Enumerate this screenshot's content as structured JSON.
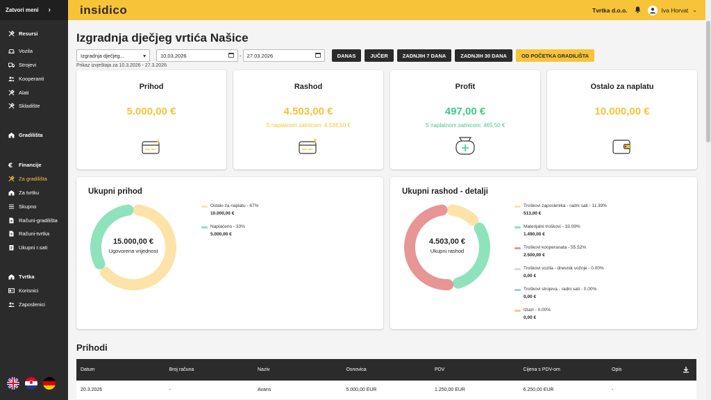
{
  "sidebar": {
    "toggle_label": "Zatvori meni",
    "groups": [
      {
        "title": "Resursi",
        "icon": "tools-icon",
        "items": [
          {
            "label": "Vozila",
            "icon": "car-icon"
          },
          {
            "label": "Strojevi",
            "icon": "truck-icon"
          },
          {
            "label": "Kooperanti",
            "icon": "users-icon"
          },
          {
            "label": "Alati",
            "icon": "tools-icon"
          },
          {
            "label": "Skladište",
            "icon": "tools-icon"
          }
        ]
      },
      {
        "title": "Gradilišta",
        "icon": "building-icon",
        "items": []
      },
      {
        "title": "Financije",
        "icon": "euro-icon",
        "items": [
          {
            "label": "Za gradilišta",
            "icon": "tools-icon",
            "active": true
          },
          {
            "label": "Za tvrtku",
            "icon": "building-icon"
          },
          {
            "label": "Skupno",
            "icon": "list-icon"
          },
          {
            "label": "Računi-gradilišta",
            "icon": "document-icon"
          },
          {
            "label": "Računi-tvrtka",
            "icon": "document-icon"
          },
          {
            "label": "Ukupni r.sati",
            "icon": "clipboard-icon"
          }
        ]
      },
      {
        "title": "Tvrtka",
        "icon": "building-icon",
        "items": [
          {
            "label": "Korisnici",
            "icon": "id-card-icon"
          },
          {
            "label": "Zaposlenici",
            "icon": "users-icon"
          }
        ]
      }
    ],
    "languages": [
      "english-flag-icon",
      "croatian-flag-icon",
      "german-flag-icon"
    ]
  },
  "topbar": {
    "logo": "insidico",
    "company": "Tvrtka d.o.o.",
    "user": "Iva Horvat"
  },
  "page": {
    "title": "Izgradnja dječjeg vrtića Našice",
    "project_select": "Izgradnja dječjeg...",
    "date_from": "10.03.2026",
    "date_to": "27.03.2026",
    "range_separator": "-",
    "buttons": [
      "DANAS",
      "JUČER",
      "ZADNJIH 7 DANA",
      "ZADNJIH 30 DANA",
      "OD POČETKA GRADILIŠTA"
    ],
    "range_note": "Prikaz izvještaja za 10.3.2026 - 27.3.2026"
  },
  "kpis": [
    {
      "title": "Prihod",
      "value": "5.000,00 €",
      "sub": "",
      "color": "#f7c338",
      "icon": "wallet-in-icon"
    },
    {
      "title": "Rashod",
      "value": "4.503,00 €",
      "sub": "S naplatnom satnicom: 4.534,50 €",
      "color": "#f7c338",
      "icon": "wallet-out-icon"
    },
    {
      "title": "Profit",
      "value": "497,00 €",
      "sub": "S naplatnom satnicom: 465,50 €",
      "color": "#3fc98a",
      "icon": "bag-plus-icon"
    },
    {
      "title": "Ostalo za naplatu",
      "value": "10.000,00 €",
      "sub": "",
      "color": "#f7c338",
      "icon": "wallet-icon"
    }
  ],
  "income_chart": {
    "title": "Ukupni prihod",
    "center_value": "15.000,00 €",
    "center_label": "Ugovorena vrijednost",
    "legend": [
      {
        "label": "Ostalo za naplatu - 67%",
        "value": "10.000,00 €",
        "color": "#fde3a7",
        "pct": 67
      },
      {
        "label": "Naplaćeno - 33%",
        "value": "5.000,00 €",
        "color": "#8fe3bc",
        "pct": 33
      }
    ]
  },
  "expense_chart": {
    "title": "Ukupni rashod - detalji",
    "center_value": "4.503,00 €",
    "center_label": "Ukupni rashod",
    "legend": [
      {
        "label": "Troškovi zaposlenika - radni sati - 11.39%",
        "value": "513,00 €",
        "color": "#fde3a7",
        "pct": 11.39
      },
      {
        "label": "Materijalni troškovi - 33.09%",
        "value": "1.490,00 €",
        "color": "#8fe3bc",
        "pct": 33.09
      },
      {
        "label": "Troškovi kooperanata - 55.52%",
        "value": "2.500,00 €",
        "color": "#e89595",
        "pct": 55.52
      },
      {
        "label": "Troškovi vozila - dnevnik vožnje - 0.00%",
        "value": "0,00 €",
        "color": "#d9d9d9",
        "pct": 0
      },
      {
        "label": "Troškovi strojeva - radni sati - 0.00%",
        "value": "0,00 €",
        "color": "#a9c4ef",
        "pct": 0
      },
      {
        "label": "Izlazi - 0.00%",
        "value": "0,00 €",
        "color": "#f8c796",
        "pct": 0
      }
    ]
  },
  "income_table": {
    "title": "Prihodi",
    "columns": [
      "Datum",
      "Broj računa",
      "Naziv",
      "Osnovica",
      "PDV",
      "Cijena s PDV-om",
      "Opis"
    ],
    "rows": [
      [
        "20.3.2026",
        "-",
        "Avans",
        "5.000,00 EUR",
        "1.250,00 EUR",
        "6.250,00 EUR",
        "-"
      ]
    ]
  }
}
